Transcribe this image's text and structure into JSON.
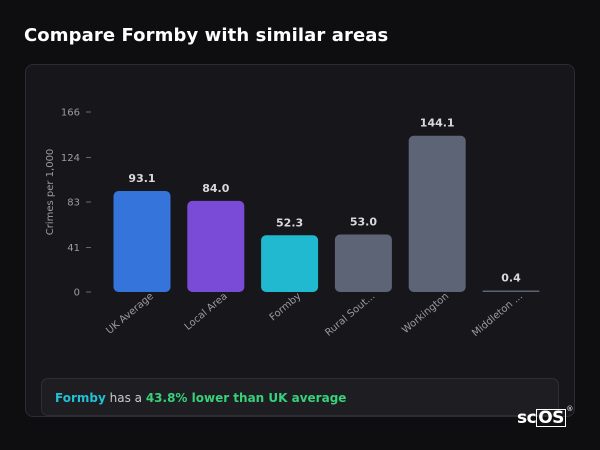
{
  "heading": "Compare Formby with similar areas",
  "summary": {
    "area": "Formby",
    "middle": " has a ",
    "highlight": "43.8% lower than UK average"
  },
  "logo": {
    "prefix": "sc",
    "boxed": "OS",
    "mark": "®"
  },
  "colors": {
    "background": "#0e0e11",
    "card": "#17171b",
    "accent_cyan": "#21c0d4",
    "accent_green": "#36d17a"
  },
  "chart_data": {
    "type": "bar",
    "ylabel": "Crimes per 1,000",
    "ylim": [
      0,
      166
    ],
    "yticks": [
      0,
      41,
      83,
      124,
      166
    ],
    "grid": false,
    "categories": [
      "UK Average",
      "Local Area",
      "Formby",
      "Rural Sout...",
      "Workington",
      "Middleton ..."
    ],
    "values": [
      93.1,
      84.0,
      52.3,
      53.0,
      144.1,
      0.4
    ],
    "value_labels": [
      "93.1",
      "84.0",
      "52.3",
      "53.0",
      "144.1",
      "0.4"
    ],
    "bar_colors": [
      "#3474db",
      "#7a4bd6",
      "#21b9d0",
      "#5c6475",
      "#5c6475",
      "#5c6475"
    ]
  }
}
